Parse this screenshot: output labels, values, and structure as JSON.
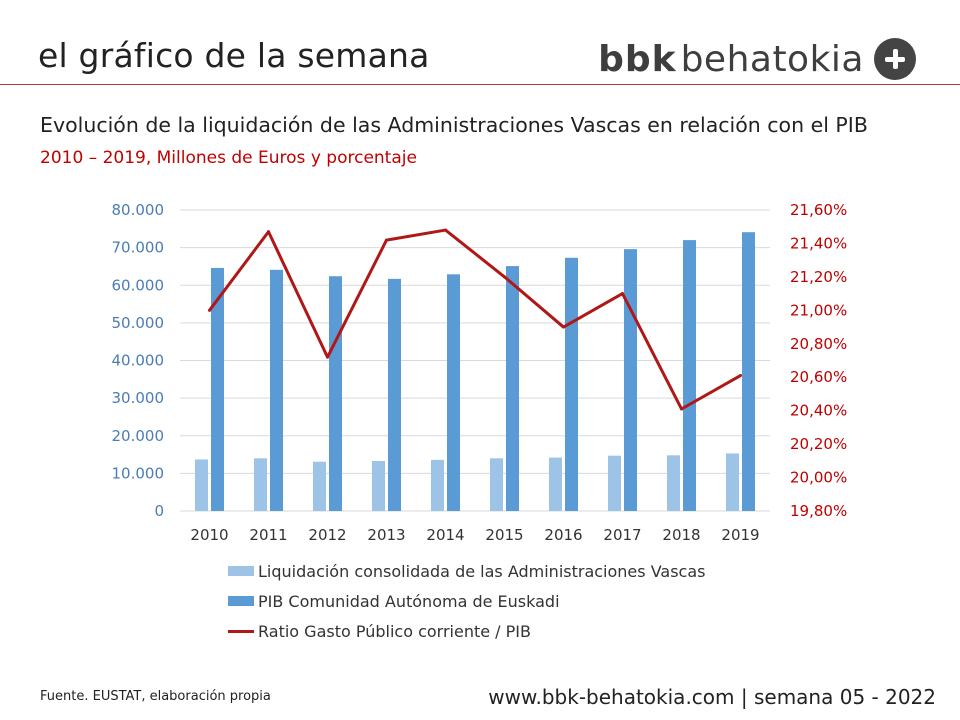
{
  "header": {
    "title": "el gráfico de la semana",
    "logo_bold": "bbk",
    "logo_rest": "behatokia"
  },
  "colors": {
    "accent": "#c00000",
    "bar_light": "#9dc3e6",
    "bar_dark": "#5b9bd5",
    "line": "#b01717",
    "left_axis": "#4a7db5"
  },
  "chart_data": {
    "type": "bar",
    "title": "Evolución de la liquidación de las Administraciones Vascas en relación con el PIB",
    "subtitle": "2010 – 2019, Millones de Euros y porcentaje",
    "categories": [
      "2010",
      "2011",
      "2012",
      "2013",
      "2014",
      "2015",
      "2016",
      "2017",
      "2018",
      "2019"
    ],
    "series": [
      {
        "name": "Liquidación consolidada de las Administraciones Vascas",
        "type": "bar",
        "axis": "left",
        "values": [
          13700,
          14000,
          13100,
          13300,
          13600,
          14000,
          14200,
          14700,
          14800,
          15300
        ]
      },
      {
        "name": "PIB Comunidad Autónoma de Euskadi",
        "type": "bar",
        "axis": "left",
        "values": [
          64600,
          64100,
          62400,
          61700,
          62900,
          65100,
          67300,
          69600,
          72000,
          74100
        ]
      },
      {
        "name": "Ratio Gasto Público corriente / PIB",
        "type": "line",
        "axis": "right",
        "values": [
          21.0,
          21.47,
          20.72,
          21.42,
          21.48,
          21.2,
          20.9,
          21.1,
          20.41,
          20.61
        ]
      }
    ],
    "y_left": {
      "min": 0,
      "max": 80000,
      "ticks": [
        "0",
        "10.000",
        "20.000",
        "30.000",
        "40.000",
        "50.000",
        "60.000",
        "70.000",
        "80.000"
      ]
    },
    "y_right": {
      "min": 19.8,
      "max": 21.6,
      "ticks": [
        "19,80%",
        "20,00%",
        "20,20%",
        "20,40%",
        "20,60%",
        "20,80%",
        "21,00%",
        "21,20%",
        "21,40%",
        "21,60%"
      ]
    },
    "grid": true,
    "legend_position": "bottom"
  },
  "footer": {
    "source": "Fuente. EUSTAT, elaboración propia",
    "url": "www.bbk-behatokia.com | semana 05 - 2022"
  }
}
